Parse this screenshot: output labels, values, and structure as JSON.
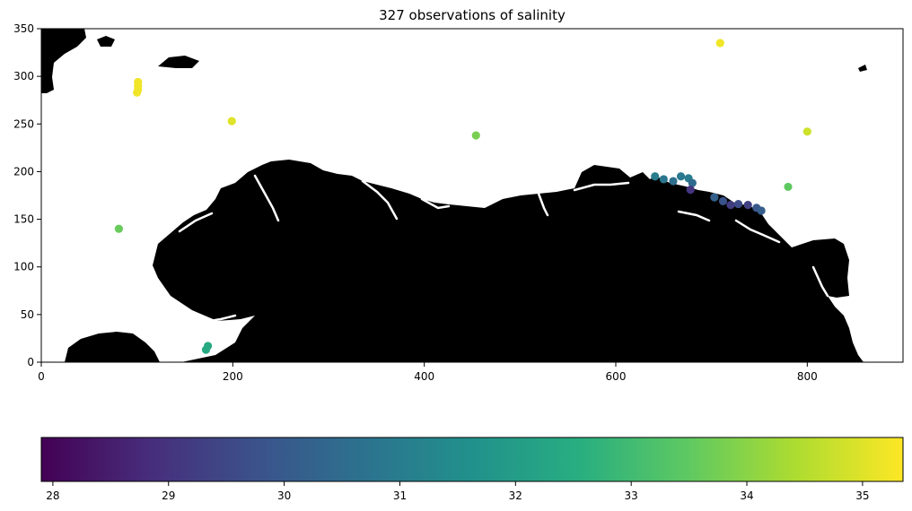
{
  "chart_data": {
    "type": "scatter",
    "title": "327 observations of salinity",
    "xlabel": "",
    "ylabel": "",
    "xlim": [
      0,
      900
    ],
    "ylim": [
      0,
      350
    ],
    "xticks": [
      0,
      200,
      400,
      600,
      800
    ],
    "yticks": [
      0,
      50,
      100,
      150,
      200,
      250,
      300,
      350
    ],
    "grid": false,
    "background": "land mask (black) with white water",
    "colormap": "viridis",
    "colorbar": {
      "orientation": "horizontal",
      "range": [
        27.9,
        35.35
      ],
      "ticks": [
        28,
        29,
        30,
        31,
        32,
        33,
        34,
        35
      ]
    },
    "points": [
      {
        "x": 709,
        "y": 335,
        "value": 35.2
      },
      {
        "x": 101,
        "y": 294,
        "value": 35.2
      },
      {
        "x": 101,
        "y": 290,
        "value": 35.2
      },
      {
        "x": 101,
        "y": 286,
        "value": 35.2
      },
      {
        "x": 100,
        "y": 283,
        "value": 35.2
      },
      {
        "x": 199,
        "y": 253,
        "value": 35.0
      },
      {
        "x": 800,
        "y": 242,
        "value": 34.8
      },
      {
        "x": 454,
        "y": 238,
        "value": 33.8
      },
      {
        "x": 780,
        "y": 184,
        "value": 33.5
      },
      {
        "x": 81,
        "y": 140,
        "value": 33.6
      },
      {
        "x": 174,
        "y": 17,
        "value": 32.4
      },
      {
        "x": 172,
        "y": 13,
        "value": 32.4
      },
      {
        "x": 641,
        "y": 195,
        "value": 31.0
      },
      {
        "x": 650,
        "y": 192,
        "value": 30.8
      },
      {
        "x": 660,
        "y": 190,
        "value": 30.6
      },
      {
        "x": 668,
        "y": 195,
        "value": 30.9
      },
      {
        "x": 676,
        "y": 193,
        "value": 31.0
      },
      {
        "x": 680,
        "y": 188,
        "value": 30.5
      },
      {
        "x": 678,
        "y": 181,
        "value": 29.0
      },
      {
        "x": 703,
        "y": 173,
        "value": 30.2
      },
      {
        "x": 712,
        "y": 169,
        "value": 29.8
      },
      {
        "x": 720,
        "y": 165,
        "value": 29.2
      },
      {
        "x": 728,
        "y": 166,
        "value": 29.6
      },
      {
        "x": 738,
        "y": 165,
        "value": 29.3
      },
      {
        "x": 747,
        "y": 162,
        "value": 29.9
      },
      {
        "x": 752,
        "y": 159,
        "value": 30.1
      }
    ]
  },
  "colors": {
    "land": "#000000",
    "water": "#ffffff",
    "viridis": [
      "#440154",
      "#472d7b",
      "#3b528b",
      "#2c728e",
      "#21918c",
      "#28ae80",
      "#5ec962",
      "#addc30",
      "#fde725"
    ]
  }
}
